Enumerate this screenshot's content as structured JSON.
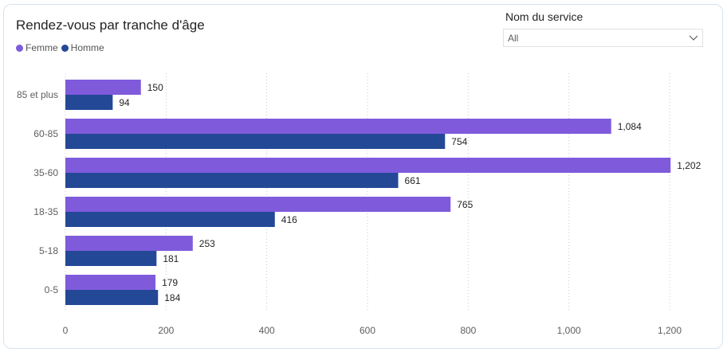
{
  "chart_data": {
    "type": "bar",
    "orientation": "horizontal",
    "title": "Rendez-vous par tranche d'âge",
    "categories": [
      "85 et plus",
      "60-85",
      "35-60",
      "18-35",
      "5-18",
      "0-5"
    ],
    "series": [
      {
        "name": "Femme",
        "color": "#7f5bdc",
        "values": [
          150,
          1084,
          1202,
          765,
          253,
          179
        ]
      },
      {
        "name": "Homme",
        "color": "#234896",
        "values": [
          94,
          754,
          661,
          416,
          181,
          184
        ]
      }
    ],
    "xlim": [
      0,
      1200
    ],
    "xticks": [
      0,
      200,
      400,
      600,
      800,
      1000,
      1200
    ],
    "xtick_labels": [
      "0",
      "200",
      "400",
      "600",
      "800",
      "1,000",
      "1,200"
    ],
    "grid": "vertical-dotted",
    "legend": "top-left"
  },
  "legend": {
    "femme_label": "Femme",
    "homme_label": "Homme"
  },
  "slicer": {
    "label": "Nom du service",
    "value": "All"
  }
}
